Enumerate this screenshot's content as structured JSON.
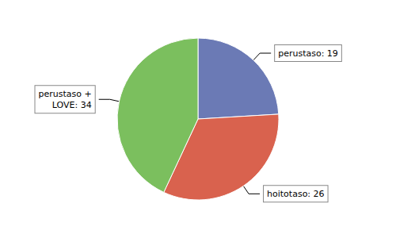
{
  "chart_data": {
    "type": "pie",
    "categories": [
      "perustaso",
      "hoitotaso",
      "perustaso +\nLOVE"
    ],
    "values": [
      19,
      26,
      34
    ],
    "colors": [
      "#6b7ab5",
      "#d9624e",
      "#7bbf5e"
    ],
    "annotations": [
      "perustaso: 19",
      "hoitotaso: 26",
      "perustaso +\nLOVE: 34"
    ]
  }
}
